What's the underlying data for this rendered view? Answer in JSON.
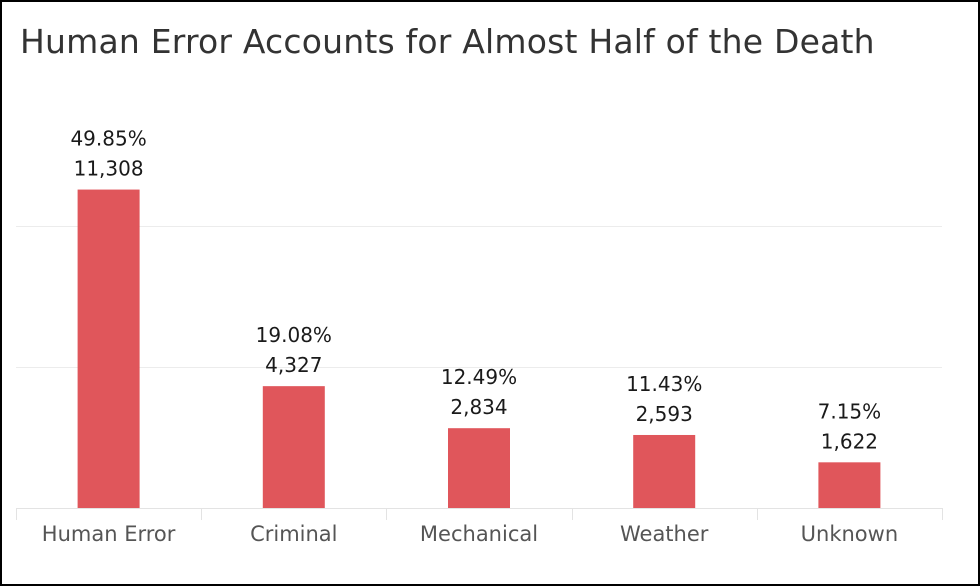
{
  "chart_data": {
    "type": "bar",
    "title": "Human Error Accounts for Almost Half of the Death",
    "xlabel": "",
    "ylabel": "",
    "categories": [
      "Human Error",
      "Criminal",
      "Mechanical",
      "Weather",
      "Unknown"
    ],
    "values": [
      11308,
      4327,
      2834,
      2593,
      1622
    ],
    "value_labels": [
      "11,308",
      "4,327",
      "2,834",
      "2,593",
      "1,622"
    ],
    "percent_labels": [
      "49.85%",
      "19.08%",
      "12.49%",
      "11.43%",
      "7.15%"
    ],
    "ylim": [
      0,
      13200
    ],
    "gridlines": [
      5000,
      10000
    ],
    "grid": true,
    "legend": "none",
    "bar_color": "#e0565b"
  }
}
